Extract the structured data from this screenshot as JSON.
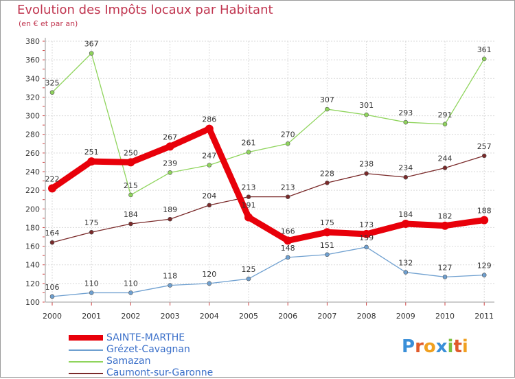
{
  "header": {
    "title": "Evolution des Impôts locaux par Habitant",
    "subtitle": "(en € et par an)"
  },
  "logo": {
    "text": "Proxiti"
  },
  "chart_data": {
    "type": "line",
    "x": [
      "2000",
      "2001",
      "2002",
      "2003",
      "2004",
      "2005",
      "2006",
      "2007",
      "2008",
      "2009",
      "2010",
      "2011"
    ],
    "ylim": [
      100,
      380
    ],
    "yticks": [
      100,
      120,
      140,
      160,
      180,
      200,
      220,
      240,
      260,
      280,
      300,
      320,
      340,
      360,
      380
    ],
    "grid": true,
    "legend_position": "bottom-left",
    "series": [
      {
        "name": "SAINTE-MARTHE",
        "color": "#e8000a",
        "values": [
          222,
          251,
          250,
          267,
          286,
          191,
          166,
          175,
          173,
          184,
          182,
          188
        ]
      },
      {
        "name": "Grézet-Cavagnan",
        "color": "#6fa0d0",
        "values": [
          106,
          110,
          110,
          118,
          120,
          125,
          148,
          151,
          159,
          132,
          127,
          129
        ]
      },
      {
        "name": "Samazan",
        "color": "#8fd45c",
        "values": [
          325,
          367,
          215,
          239,
          247,
          261,
          270,
          307,
          301,
          293,
          291,
          361
        ]
      },
      {
        "name": "Caumont-sur-Garonne",
        "color": "#7a2a2a",
        "values": [
          164,
          175,
          184,
          189,
          204,
          213,
          213,
          228,
          238,
          234,
          244,
          257
        ]
      }
    ]
  }
}
